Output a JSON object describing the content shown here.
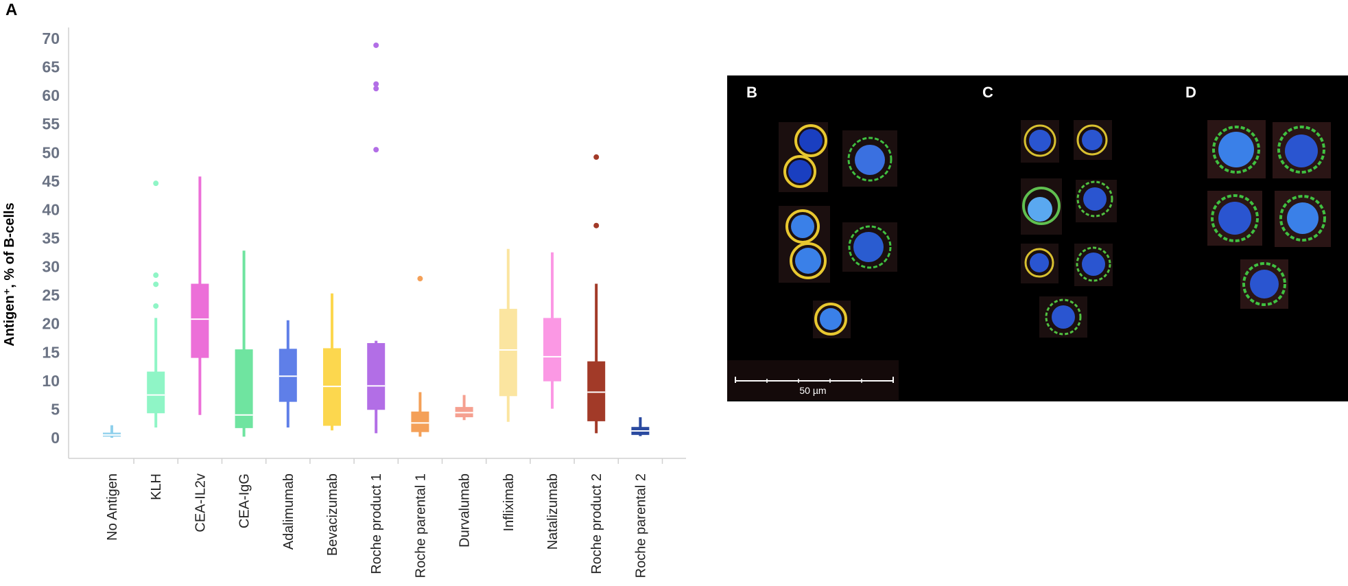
{
  "panels": {
    "a": "A",
    "b": "B",
    "c": "C",
    "d": "D"
  },
  "scale_bar_label": "50 µm",
  "chart_data": {
    "type": "box",
    "title": "",
    "xlabel": "",
    "ylabel": "Antigen⁺, % of B-cells",
    "ylim": [
      0,
      70
    ],
    "yticks": [
      0,
      5,
      10,
      15,
      20,
      25,
      30,
      35,
      40,
      45,
      50,
      55,
      60,
      65,
      70
    ],
    "grid": false,
    "categories": [
      "No Antigen",
      "KLH",
      "CEA-IL2v",
      "CEA-IgG",
      "Adalimumab",
      "Bevacizumab",
      "Roche product 1",
      "Roche parental 1",
      "Durvalumab",
      "Infliximab",
      "Natalizumab",
      "Roche product 2",
      "Roche parental 2"
    ],
    "boxes": [
      {
        "category": "No Antigen",
        "min": 0.0,
        "q1": 0.2,
        "median": 0.5,
        "q3": 0.9,
        "max": 2.2,
        "outliers": [],
        "color": "#8fd0ec"
      },
      {
        "category": "KLH",
        "min": 1.8,
        "q1": 4.3,
        "median": 7.5,
        "q3": 11.6,
        "max": 21.0,
        "outliers": [
          23.1,
          26.9,
          28.5,
          44.6
        ],
        "color": "#8ff5c6"
      },
      {
        "category": "CEA-IL2v",
        "min": 4.0,
        "q1": 14.0,
        "median": 20.8,
        "q3": 27.0,
        "max": 45.8,
        "outliers": [],
        "color": "#ec6fd8"
      },
      {
        "category": "CEA-IgG",
        "min": 0.2,
        "q1": 1.7,
        "median": 4.0,
        "q3": 15.5,
        "max": 32.8,
        "outliers": [],
        "color": "#6fe4a0"
      },
      {
        "category": "Adalimumab",
        "min": 1.8,
        "q1": 6.3,
        "median": 10.8,
        "q3": 15.6,
        "max": 20.6,
        "outliers": [],
        "color": "#5f7fe8"
      },
      {
        "category": "Bevacizumab",
        "min": 1.3,
        "q1": 2.1,
        "median": 9.0,
        "q3": 15.7,
        "max": 25.3,
        "outliers": [],
        "color": "#fcd74e"
      },
      {
        "category": "Roche product 1",
        "min": 0.8,
        "q1": 4.9,
        "median": 9.1,
        "q3": 16.6,
        "max": 17.0,
        "outliers": [
          50.5,
          61.2,
          62.0,
          68.8
        ],
        "color": "#b26ee6"
      },
      {
        "category": "Roche parental 1",
        "min": 0.2,
        "q1": 1.0,
        "median": 2.6,
        "q3": 4.6,
        "max": 8.0,
        "outliers": [
          27.9
        ],
        "color": "#f4a058"
      },
      {
        "category": "Durvalumab",
        "min": 3.1,
        "q1": 3.6,
        "median": 4.4,
        "q3": 5.4,
        "max": 7.5,
        "outliers": [],
        "color": "#f5a090"
      },
      {
        "category": "Infliximab",
        "min": 2.8,
        "q1": 7.3,
        "median": 15.4,
        "q3": 22.6,
        "max": 33.1,
        "outliers": [],
        "color": "#fbe5a0"
      },
      {
        "category": "Natalizumab",
        "min": 5.1,
        "q1": 9.9,
        "median": 14.2,
        "q3": 21.0,
        "max": 32.5,
        "outliers": [],
        "color": "#fb98e4"
      },
      {
        "category": "Roche product 2",
        "min": 0.8,
        "q1": 2.9,
        "median": 8.0,
        "q3": 13.4,
        "max": 27.0,
        "outliers": [
          37.2,
          49.2
        ],
        "color": "#a23a28"
      },
      {
        "category": "Roche parental 2",
        "min": 0.3,
        "q1": 0.5,
        "median": 1.2,
        "q3": 1.9,
        "max": 3.6,
        "outliers": [],
        "color": "#2a4aa0"
      }
    ]
  }
}
